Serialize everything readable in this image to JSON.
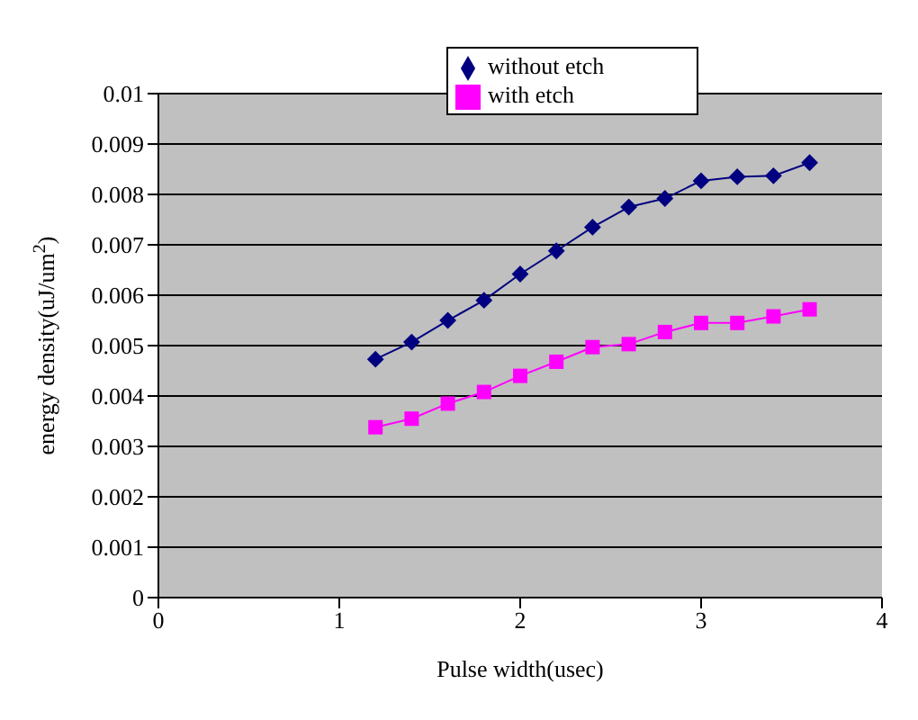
{
  "chart_data": {
    "type": "line",
    "xlabel": "Pulse width(usec)",
    "ylabel": "energy density(uJ/um$^{2}$)",
    "x": [
      1.2,
      1.4,
      1.6,
      1.8,
      2.0,
      2.2,
      2.4,
      2.6,
      2.8,
      3.0,
      3.2,
      3.4,
      3.6
    ],
    "series": [
      {
        "name": "without etch",
        "color": "#000080",
        "marker": "diamond",
        "values": [
          0.00473,
          0.00507,
          0.0055,
          0.0059,
          0.00642,
          0.00688,
          0.00735,
          0.00775,
          0.00792,
          0.00827,
          0.00835,
          0.00837,
          0.00863
        ]
      },
      {
        "name": "with etch",
        "color": "#ff00ff",
        "marker": "square",
        "values": [
          0.00338,
          0.00355,
          0.00385,
          0.00408,
          0.0044,
          0.00468,
          0.00497,
          0.00503,
          0.00527,
          0.00545,
          0.00545,
          0.00558,
          0.00572
        ]
      }
    ],
    "xlim": [
      0,
      4
    ],
    "xticks": [
      0,
      1,
      2,
      3,
      4
    ],
    "ylim": [
      0,
      0.01
    ],
    "yticks": [
      0,
      0.001,
      0.002,
      0.003,
      0.004,
      0.005,
      0.006,
      0.007,
      0.008,
      0.009,
      0.01
    ],
    "grid": "y",
    "legend": "top"
  }
}
